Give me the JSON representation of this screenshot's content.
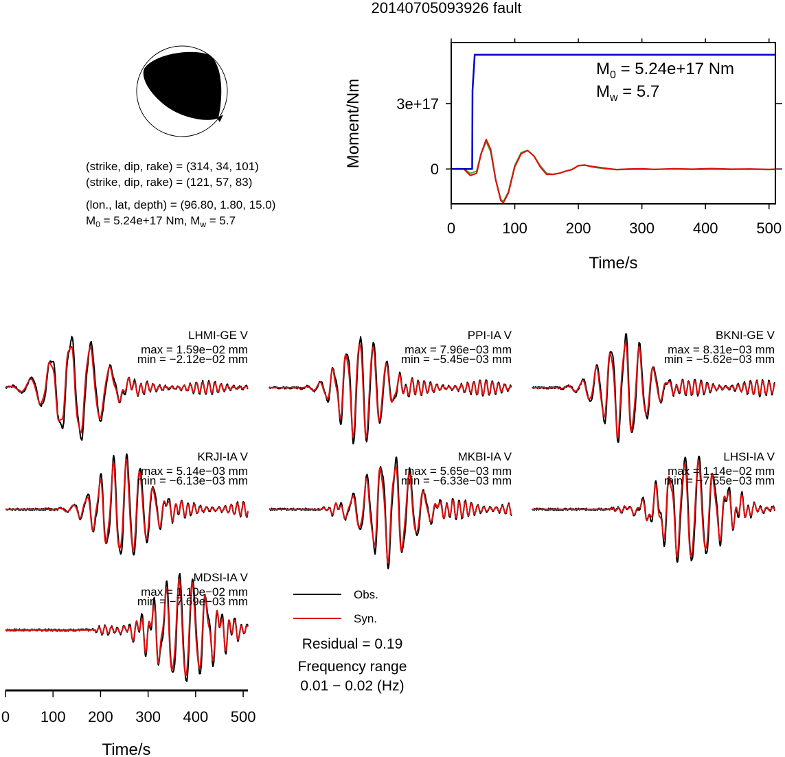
{
  "figure": {
    "title": "20140705093926 fault",
    "colors": {
      "observed": "#000000",
      "synthetic": "#dd1111",
      "moment": "#0000cc",
      "rate_green": "#33bb33",
      "axis": "#000000"
    }
  },
  "mechanism": {
    "nodal_plane_1": "(strike, dip, rake) = (314, 34, 101)",
    "nodal_plane_2": "(strike, dip, rake) = (121, 57, 83)",
    "location": "(lon., lat, depth) = (96.80, 1.80, 15.0)",
    "m0_label": "M",
    "m0_sub": "0",
    "m0_text": " = 5.24e+17 Nm, M",
    "mw_sub": "w",
    "mw_text": " = 5.7"
  },
  "moment_panel": {
    "m0_main": "M",
    "m0_sub": "0",
    "m0_value": " = 5.24e+17 Nm",
    "mw_main": "M",
    "mw_sub": "w",
    "mw_value": " = 5.7"
  },
  "legend": {
    "observed": "Obs.",
    "synthetic": "Syn.",
    "residual": "Residual = 0.19",
    "freq_title": "Frequency range",
    "freq_value": "0.01 − 0.02 (Hz)"
  },
  "chart_data": [
    {
      "type": "line",
      "title": "",
      "xlabel": "Time/s",
      "ylabel": "Moment/Nm",
      "xlim": [
        0,
        510
      ],
      "ylim": [
        -1.6e+17,
        5.8e+17
      ],
      "xticks": [
        "0",
        "100",
        "200",
        "300",
        "400",
        "500"
      ],
      "yticks": [
        "0",
        "3e+17"
      ],
      "series": [
        {
          "name": "moment",
          "x": [
            0,
            33,
            33.5,
            37,
            38,
            510
          ],
          "y": [
            0,
            0,
            3.6e+17,
            5.24e+17,
            5.24e+17,
            5.24e+17
          ]
        },
        {
          "name": "rate_obs",
          "x": [
            0,
            10,
            20,
            30,
            40,
            47,
            55,
            62,
            70,
            78,
            82,
            90,
            100,
            110,
            120,
            130,
            140,
            150,
            160,
            170,
            180,
            190,
            200,
            210,
            220,
            240,
            260,
            280,
            300,
            320,
            350,
            380,
            410,
            440,
            470,
            500,
            510
          ],
          "y": [
            0,
            1000000000000000.0,
            0,
            -3e+16,
            -2e+16,
            7e+16,
            1.35e+17,
            9e+16,
            -5e+16,
            -1.45e+17,
            -1.55e+17,
            -1.1e+17,
            1e+16,
            7e+16,
            8.5e+16,
            6e+16,
            1e+16,
            -2.5e+16,
            -2.5e+16,
            -2e+16,
            -1e+16,
            -3000000000000000.0,
            1.5e+16,
            1.8e+16,
            1.2e+16,
            4000000000000000.0,
            -3000000000000000.0,
            0,
            1000000000000000.0,
            -2000000000000000.0,
            1000000000000000.0,
            -1000000000000000.0,
            2000000000000000.0,
            -1000000000000000.0,
            0,
            -2000000000000000.0,
            -1000000000000000.0
          ]
        },
        {
          "name": "rate_green",
          "x": [
            0,
            10,
            20,
            30,
            40,
            47,
            55,
            62,
            70,
            78,
            82,
            90,
            100,
            110,
            120,
            130,
            140,
            150,
            160,
            170,
            180,
            190,
            200,
            210,
            220,
            240,
            260,
            280,
            300,
            320,
            350,
            380,
            410,
            440,
            470,
            500,
            510
          ],
          "y": [
            0,
            0,
            0,
            -2e+16,
            -1e+16,
            7e+16,
            1.25e+17,
            8e+16,
            -5e+16,
            -1.4e+17,
            -1.5e+17,
            -1.05e+17,
            1.5e+16,
            7.5e+16,
            8.5e+16,
            6e+16,
            1.5e+16,
            -2e+16,
            -2.5e+16,
            -2e+16,
            -1e+16,
            -2000000000000000.0,
            1.5e+16,
            1.8e+16,
            1e+16,
            2000000000000000.0,
            -3000000000000000.0,
            -2000000000000000.0,
            -1000000000000000.0,
            -2000000000000000.0,
            0,
            -2000000000000000.0,
            -1000000000000000.0,
            -2000000000000000.0,
            -1000000000000000.0,
            -3000000000000000.0,
            -2000000000000000.0
          ]
        }
      ]
    },
    {
      "type": "line",
      "title": "",
      "xlabel": "Time/s",
      "ylabel": "",
      "xlim": [
        0,
        510
      ],
      "xticks": [
        "0",
        "100",
        "200",
        "300",
        "400",
        "500"
      ],
      "stations": [
        {
          "name": "LHMI-GE V",
          "max": "max = 1.59e−02 mm",
          "min": "min = −2.12e−02 mm",
          "start": 70,
          "center": 150,
          "width": 75,
          "period": 42,
          "amp": 0.95,
          "tail": 0.12,
          "seed": 1
        },
        {
          "name": "PPI-IA V",
          "max": "max = 7.96e−03 mm",
          "min": "min = −5.45e−03 mm",
          "start": 120,
          "center": 195,
          "width": 60,
          "period": 28,
          "amp": 1.0,
          "tail": 0.15,
          "seed": 2
        },
        {
          "name": "BKNI-GE V",
          "max": "max = 8.31e−03 mm",
          "min": "min = −5.62e−03 mm",
          "start": 110,
          "center": 195,
          "width": 65,
          "period": 30,
          "amp": 0.95,
          "tail": 0.15,
          "seed": 3
        },
        {
          "name": "KRJI-IA V",
          "max": "max = 5.14e−03 mm",
          "min": "min = −6.13e−03 mm",
          "start": 150,
          "center": 250,
          "width": 70,
          "period": 28,
          "amp": 0.95,
          "tail": 0.15,
          "seed": 4
        },
        {
          "name": "MKBI-IA V",
          "max": "max = 5.65e−03 mm",
          "min": "min = −6.33e−03 mm",
          "start": 130,
          "center": 255,
          "width": 70,
          "period": 30,
          "amp": 0.95,
          "tail": 0.18,
          "seed": 5
        },
        {
          "name": "LHSI-IA V",
          "max": "max = 1.14e−02 mm",
          "min": "min = −7.55e−03 mm",
          "start": 180,
          "center": 335,
          "width": 75,
          "period": 30,
          "amp": 1.0,
          "tail": 0.2,
          "seed": 6
        },
        {
          "name": "MDSI-IA V",
          "max": "max = 1.10e−02 mm",
          "min": "min = −7.69e−03 mm",
          "start": 200,
          "center": 375,
          "width": 70,
          "period": 28,
          "amp": 1.0,
          "tail": 0.25,
          "seed": 7
        }
      ]
    }
  ]
}
